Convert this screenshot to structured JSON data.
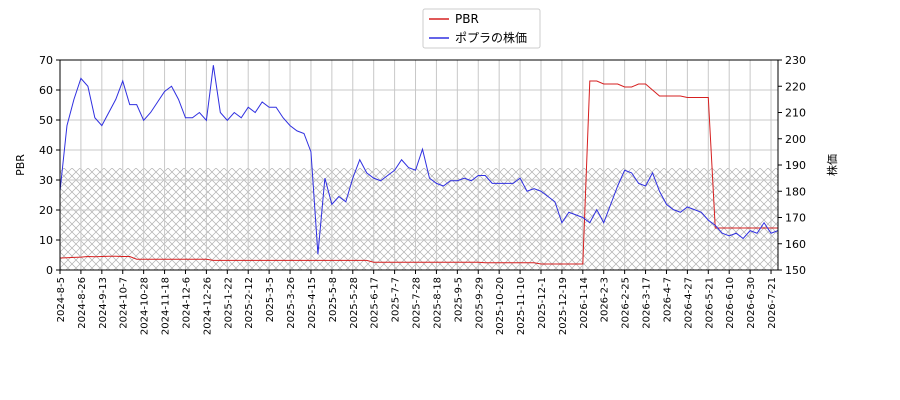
{
  "chart_data": {
    "type": "line",
    "categories": [
      "2024-8-5",
      null,
      null,
      "2024-8-26",
      null,
      null,
      "2024-9-13",
      null,
      null,
      "2024-10-7",
      null,
      null,
      "2024-10-28",
      null,
      null,
      "2024-11-18",
      null,
      null,
      "2024-12-6",
      null,
      null,
      "2024-12-26",
      null,
      null,
      "2025-1-22",
      null,
      null,
      "2025-2-12",
      null,
      null,
      "2025-3-5",
      null,
      null,
      "2025-3-26",
      null,
      null,
      "2025-4-15",
      null,
      null,
      "2025-5-8",
      null,
      null,
      "2025-5-28",
      null,
      null,
      "2025-6-17",
      null,
      null,
      "2025-7-7",
      null,
      null,
      "2025-7-28",
      null,
      null,
      "2025-8-18",
      null,
      null,
      "2025-9-5",
      null,
      null,
      "2025-9-29",
      null,
      null,
      "2025-10-20",
      null,
      null,
      "2025-11-10",
      null,
      null,
      "2025-12-1",
      null,
      null,
      "2025-12-19",
      null,
      null,
      "2026-1-14",
      null,
      null,
      "2026-2-3",
      null,
      null,
      "2026-2-25",
      null,
      null,
      "2026-3-17",
      null,
      null,
      "2026-4-7",
      null,
      null,
      "2026-4-27",
      null,
      null,
      "2026-5-21",
      null,
      null,
      "2026-6-10",
      null,
      null,
      "2026-6-30",
      null,
      null,
      "2026-7-21",
      null
    ],
    "series": [
      {
        "name": "PBR",
        "color": "#d62020",
        "axis": "y",
        "values": [
          4,
          4.1,
          4.2,
          4.3,
          4.5,
          4.4,
          4.5,
          4.6,
          4.6,
          4.5,
          4.5,
          3.6,
          3.6,
          3.6,
          3.6,
          3.6,
          3.6,
          3.6,
          3.6,
          3.6,
          3.6,
          3.6,
          3.2,
          3.2,
          3.2,
          3.2,
          3.2,
          3.2,
          3.2,
          3.2,
          3.2,
          3.2,
          3.2,
          3.2,
          3.2,
          3.2,
          3.2,
          3.2,
          3.2,
          3.2,
          3.2,
          3.2,
          3.2,
          3.2,
          3.2,
          2.6,
          2.6,
          2.6,
          2.6,
          2.6,
          2.6,
          2.6,
          2.6,
          2.6,
          2.6,
          2.6,
          2.6,
          2.6,
          2.6,
          2.6,
          2.6,
          2.4,
          2.4,
          2.4,
          2.4,
          2.4,
          2.4,
          2.4,
          2.4,
          2,
          2,
          2,
          2,
          2,
          2,
          2,
          63,
          63,
          62,
          62,
          62,
          61,
          61,
          62,
          62,
          60,
          58,
          58,
          58,
          58,
          57.5,
          57.5,
          57.5,
          57.5,
          14,
          14,
          14,
          14,
          14,
          14,
          14,
          14,
          14,
          14
        ]
      },
      {
        "name": "ポプラの株価",
        "color": "#3030e0",
        "axis": "y2",
        "values": [
          180,
          205,
          215,
          223,
          220,
          208,
          205,
          210,
          215,
          222,
          213,
          213,
          207,
          210,
          214,
          218,
          220,
          215,
          208,
          208,
          210,
          207,
          228,
          210,
          207,
          210,
          208,
          212,
          210,
          214,
          212,
          212,
          208,
          205,
          203,
          202,
          195,
          156,
          185,
          175,
          178,
          176,
          185,
          192,
          187,
          185,
          184,
          186,
          188,
          192,
          189,
          188,
          196,
          185,
          183,
          182,
          184,
          184,
          185,
          184,
          186,
          186,
          183,
          183,
          183,
          183,
          185,
          180,
          181,
          180,
          178,
          176,
          168,
          172,
          171,
          170,
          168,
          173,
          168,
          175,
          182,
          188,
          187,
          183,
          182,
          187,
          180,
          175,
          173,
          172,
          174,
          173,
          172,
          169,
          167,
          164,
          163,
          164,
          162,
          165,
          164,
          168,
          164,
          165
        ]
      }
    ],
    "ylabel": "PBR",
    "y2label": "株価",
    "ylim": [
      0,
      70
    ],
    "yticks": [
      0,
      10,
      20,
      30,
      40,
      50,
      60,
      70
    ],
    "y2lim": [
      150,
      230
    ],
    "y2ticks": [
      150,
      160,
      170,
      180,
      190,
      200,
      210,
      220,
      230
    ],
    "shaded_band": [
      0,
      34
    ],
    "grid": true,
    "legend": "upper center"
  }
}
